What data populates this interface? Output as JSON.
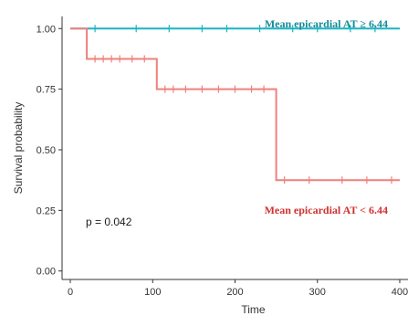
{
  "chart_data": {
    "type": "line",
    "subtype": "kaplan-meier-step",
    "title": "",
    "xlabel": "Time",
    "ylabel": "Survival probability",
    "xlim": [
      -10,
      410
    ],
    "ylim": [
      -0.035,
      1.05
    ],
    "x_ticks": [
      0,
      100,
      200,
      300,
      400
    ],
    "y_ticks": [
      0.0,
      0.25,
      0.5,
      0.75,
      1.0
    ],
    "y_tick_labels": [
      "0.00",
      "0.25",
      "0.50",
      "0.75",
      "1.00"
    ],
    "grid": false,
    "annotation": "p = 0.042",
    "series": [
      {
        "name": "Mean epicardial AT ≥ 6.44",
        "color": "#19b5c1",
        "steps": [
          [
            0,
            1.0
          ],
          [
            400,
            1.0
          ]
        ],
        "censor": [
          30,
          80,
          120,
          160,
          190,
          230,
          270,
          300,
          340,
          370
        ]
      },
      {
        "name": "Mean epicardial AT < 6.44",
        "color": "#f0807a",
        "steps": [
          [
            0,
            1.0
          ],
          [
            20,
            1.0
          ],
          [
            20,
            0.875
          ],
          [
            105,
            0.875
          ],
          [
            105,
            0.75
          ],
          [
            250,
            0.75
          ],
          [
            250,
            0.375
          ],
          [
            400,
            0.375
          ]
        ],
        "censor": [
          30,
          40,
          50,
          60,
          75,
          90,
          115,
          125,
          140,
          160,
          180,
          200,
          220,
          235,
          260,
          290,
          330,
          360,
          390
        ]
      }
    ]
  }
}
